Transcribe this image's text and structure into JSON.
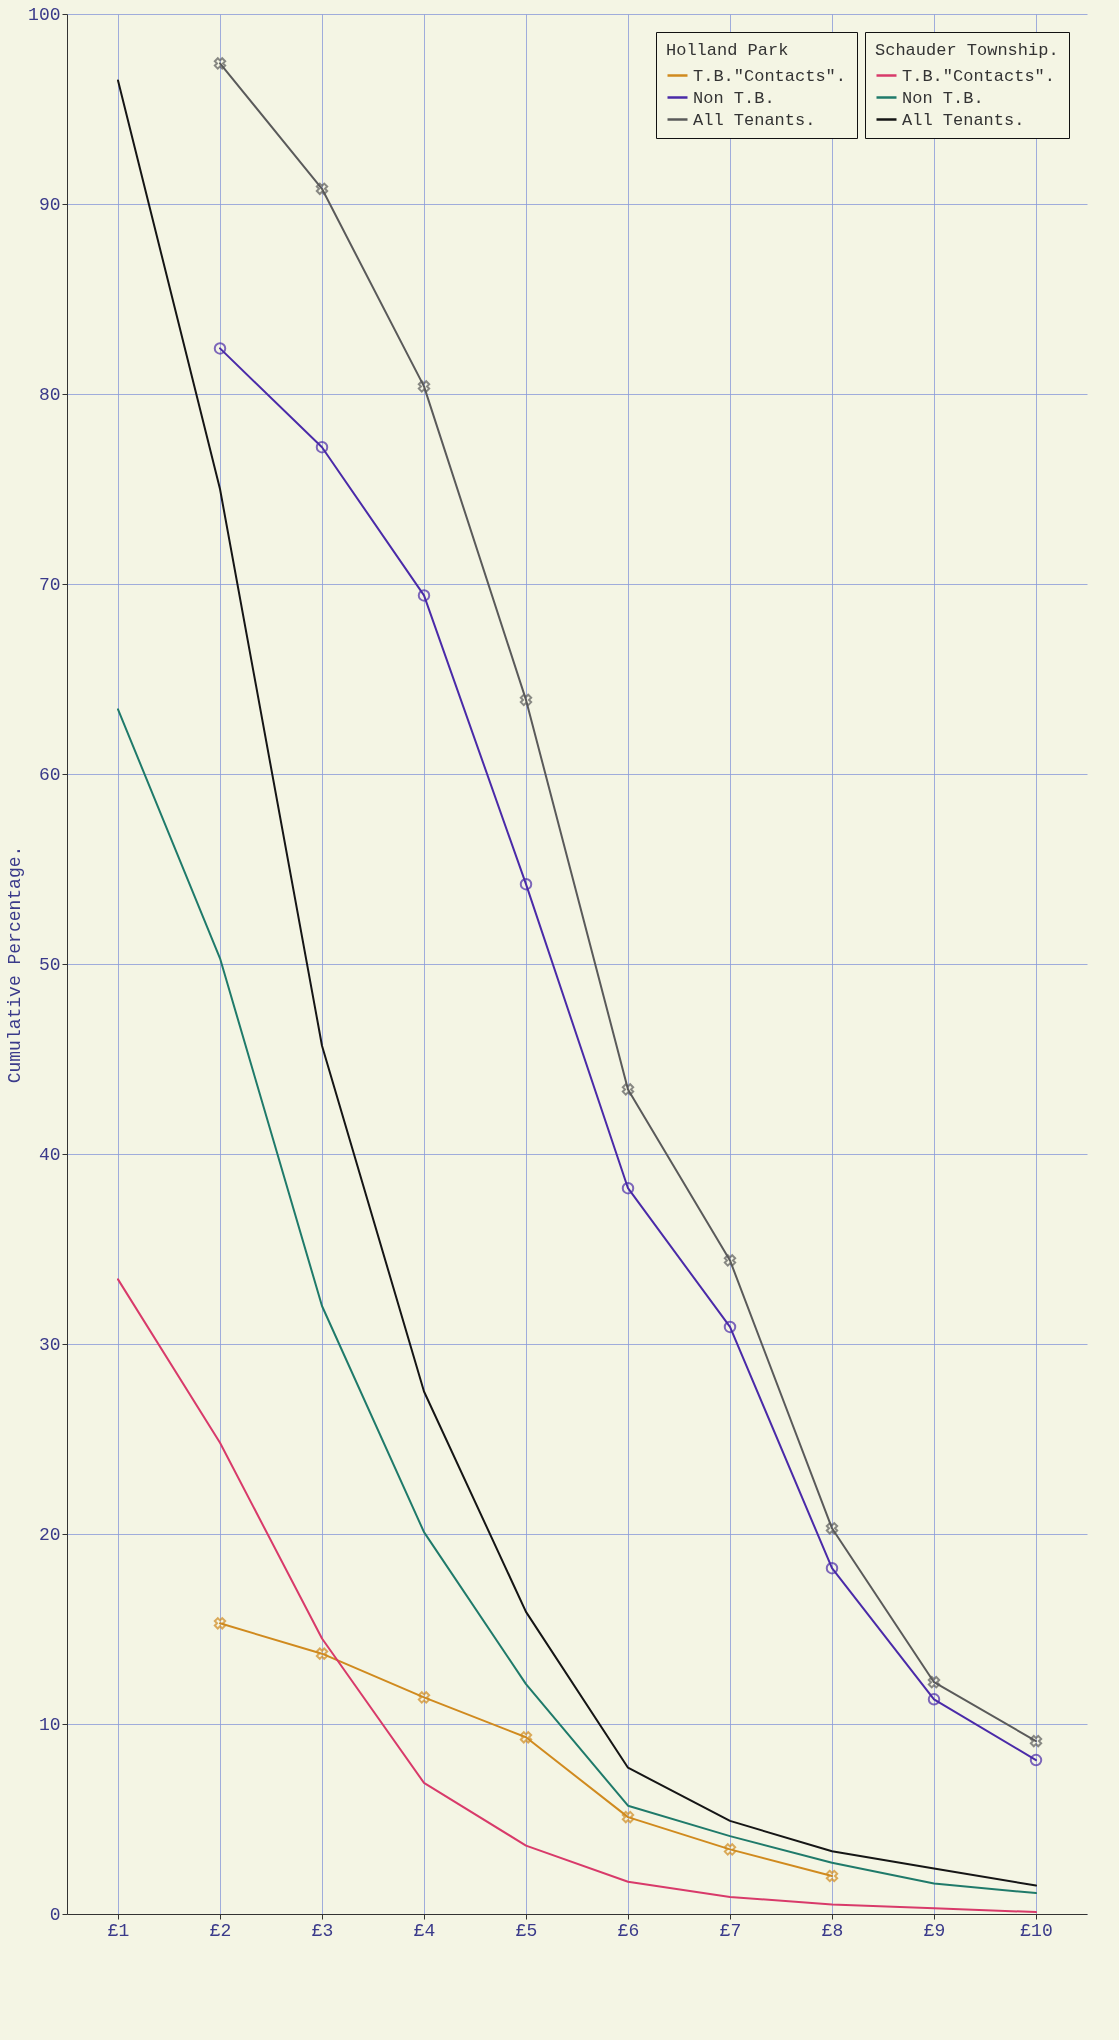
{
  "chart_data": {
    "type": "line",
    "ylabel": "Cumulative Percentage.",
    "categories": [
      "£1",
      "£2",
      "£3",
      "£4",
      "£5",
      "£6",
      "£7",
      "£8",
      "£9",
      "£10"
    ],
    "ylim": [
      0,
      100
    ],
    "yticks": [
      0,
      10,
      20,
      30,
      40,
      50,
      60,
      70,
      80,
      90,
      100
    ],
    "grid": true,
    "legend": "top right",
    "annotations": [
      "Holland Park",
      "Schauder Township."
    ],
    "series": [
      {
        "name": "T.B.\"Contacts\".",
        "color": "#d08a1e",
        "marker": "cross",
        "values": [
          null,
          15.3,
          13.7,
          11.4,
          9.3,
          5.1,
          3.4,
          2.0,
          null,
          null
        ]
      },
      {
        "name": "Non T.B.",
        "color": "#4a2aa8",
        "marker": "circle",
        "values": [
          null,
          82.4,
          77.2,
          69.4,
          54.2,
          38.2,
          30.9,
          18.2,
          11.3,
          8.1
        ]
      },
      {
        "name": "All Tenants.",
        "color": "#5a5a5a",
        "marker": "cross",
        "values": [
          null,
          97.4,
          90.8,
          80.4,
          63.9,
          43.4,
          34.4,
          20.3,
          12.2,
          9.1
        ]
      },
      {
        "name": "T.B.\"Contacts\".",
        "color": "#d83a6a",
        "marker": "none",
        "values": [
          33.4,
          24.8,
          14.5,
          6.9,
          3.6,
          1.7,
          0.9,
          0.5,
          0.3,
          0.1
        ]
      },
      {
        "name": "Non T.B.",
        "color": "#1f7a6a",
        "marker": "none",
        "values": [
          63.4,
          50.3,
          32.0,
          20.1,
          12.1,
          5.7,
          4.1,
          2.7,
          1.6,
          1.1
        ]
      },
      {
        "name": "All Tenants.",
        "color": "#151515",
        "marker": "none",
        "values": [
          96.5,
          75.0,
          45.7,
          27.5,
          15.9,
          7.7,
          4.9,
          3.3,
          2.4,
          1.5
        ]
      }
    ]
  }
}
